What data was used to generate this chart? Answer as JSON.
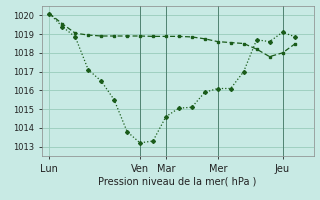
{
  "xlabel": "Pression niveau de la mer( hPa )",
  "background_color": "#c8eae4",
  "grid_color": "#99ccbb",
  "line_color": "#1a5c1a",
  "ylim": [
    1012.5,
    1020.5
  ],
  "yticks": [
    1013,
    1014,
    1015,
    1016,
    1017,
    1018,
    1019,
    1020
  ],
  "xtick_labels": [
    "Lun",
    "Ven",
    "Mar",
    "Mer",
    "Jeu"
  ],
  "xtick_positions": [
    0,
    3.5,
    4.5,
    6.5,
    9.0
  ],
  "vline_positions": [
    3.5,
    4.5,
    6.5,
    9.0
  ],
  "xlim": [
    -0.3,
    10.2
  ],
  "line1_x": [
    0,
    0.5,
    1.0,
    1.5,
    2.0,
    2.5,
    3.0,
    3.5,
    4.0,
    4.5,
    5.0,
    5.5,
    6.0,
    6.5,
    7.0,
    7.5,
    8.0,
    8.5,
    9.0,
    9.5
  ],
  "line1_y": [
    1020.1,
    1019.55,
    1019.05,
    1018.95,
    1018.9,
    1018.9,
    1018.9,
    1018.9,
    1018.88,
    1018.88,
    1018.88,
    1018.85,
    1018.75,
    1018.6,
    1018.55,
    1018.5,
    1018.2,
    1017.8,
    1018.0,
    1018.5
  ],
  "line2_x": [
    0,
    0.5,
    1.0,
    1.5,
    2.0,
    2.5,
    3.0,
    3.5,
    4.0,
    4.5,
    5.0,
    5.5,
    6.0,
    6.5,
    7.0,
    7.5,
    8.0,
    8.5,
    9.0,
    9.5
  ],
  "line2_y": [
    1020.1,
    1019.4,
    1018.85,
    1017.1,
    1016.5,
    1015.5,
    1013.8,
    1013.2,
    1013.3,
    1014.6,
    1015.05,
    1015.1,
    1015.9,
    1016.1,
    1016.1,
    1017.0,
    1018.7,
    1018.6,
    1019.1,
    1018.85
  ]
}
